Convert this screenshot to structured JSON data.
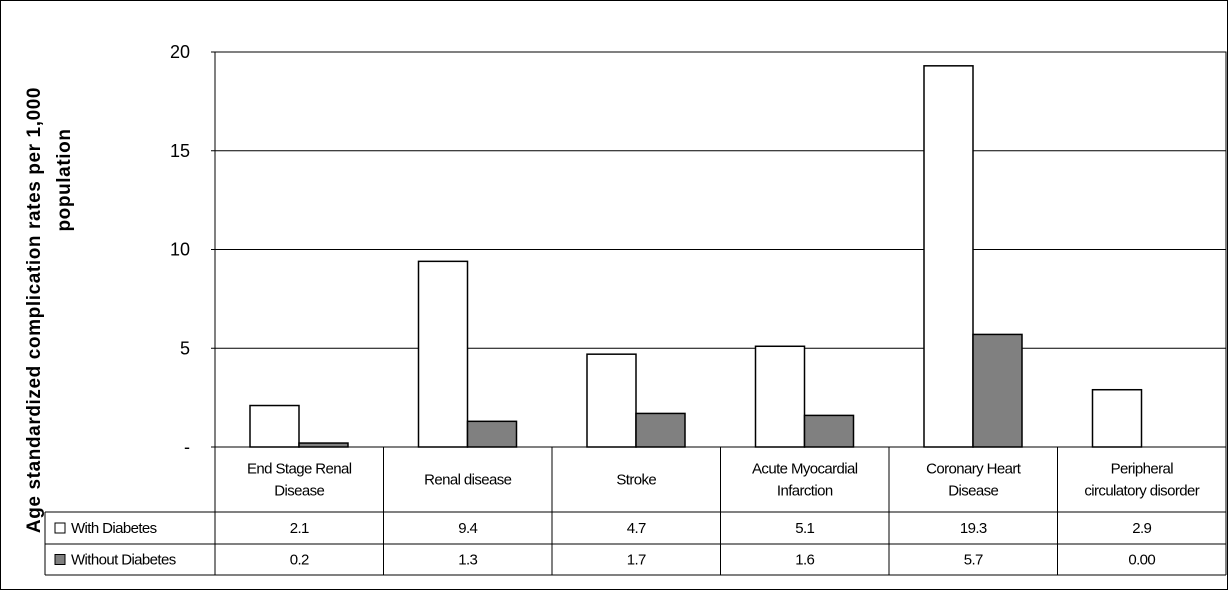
{
  "chart_data": {
    "type": "bar",
    "ylabel": "Age standardized complication rates per 1,000 population",
    "ylim": [
      0,
      20
    ],
    "y_ticks": [
      "-",
      "5",
      "10",
      "15",
      "20"
    ],
    "grid": true,
    "legend": "data table, left",
    "categories": [
      [
        "End Stage Renal",
        "Disease"
      ],
      [
        "Renal disease"
      ],
      [
        "Stroke"
      ],
      [
        "Acute Myocardial",
        "Infarction"
      ],
      [
        "Coronary Heart",
        "Disease"
      ],
      [
        "Peripheral",
        "circulatory disorder"
      ]
    ],
    "series": [
      {
        "name": "With Diabetes",
        "color": "#ffffff",
        "values": [
          2.1,
          9.4,
          4.7,
          5.1,
          19.3,
          2.9
        ],
        "labels": [
          "2.1",
          "9.4",
          "4.7",
          "5.1",
          "19.3",
          "2.9"
        ]
      },
      {
        "name": "Without Diabetes",
        "color": "#808080",
        "values": [
          0.2,
          1.3,
          1.7,
          1.6,
          5.7,
          0.0
        ],
        "labels": [
          "0.2",
          "1.3",
          "1.7",
          "1.6",
          "5.7",
          "0.00"
        ]
      }
    ]
  }
}
